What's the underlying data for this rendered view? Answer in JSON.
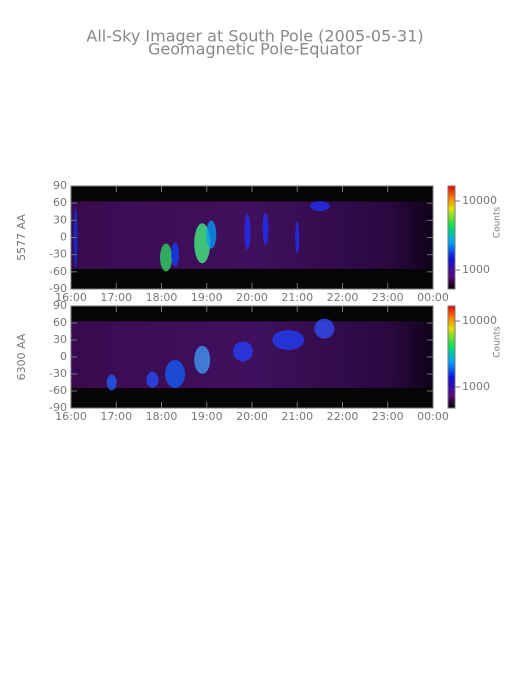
{
  "chart_data": [
    {
      "type": "heatmap",
      "title": "All-Sky Imager at South Pole (2005-05-31)",
      "subtitle": "Geomagnetic Pole-Equator",
      "y_label": "5577 AA",
      "colorbar_label": "Counts",
      "xlim": [
        16,
        24
      ],
      "xticks": [
        {
          "value": 16,
          "label": "16:00"
        },
        {
          "value": 17,
          "label": "17:00"
        },
        {
          "value": 18,
          "label": "18:00"
        },
        {
          "value": 19,
          "label": "19:00"
        },
        {
          "value": 20,
          "label": "20:00"
        },
        {
          "value": 21,
          "label": "21:00"
        },
        {
          "value": 22,
          "label": "22:00"
        },
        {
          "value": 23,
          "label": "23:00"
        },
        {
          "value": 24,
          "label": "00:00"
        }
      ],
      "ylim": [
        -90,
        90
      ],
      "yticks": [
        90,
        60,
        30,
        0,
        -30,
        -60,
        -90
      ],
      "clim": [
        530,
        16500
      ],
      "cticks": [
        1000,
        10000
      ],
      "color_log": true
    },
    {
      "type": "heatmap",
      "y_label": "6300 AA",
      "colorbar_label": "Counts",
      "xlim": [
        16,
        24
      ],
      "xticks": [
        {
          "value": 16,
          "label": "16:00"
        },
        {
          "value": 17,
          "label": "17:00"
        },
        {
          "value": 18,
          "label": "18:00"
        },
        {
          "value": 19,
          "label": "19:00"
        },
        {
          "value": 20,
          "label": "20:00"
        },
        {
          "value": 21,
          "label": "21:00"
        },
        {
          "value": 22,
          "label": "22:00"
        },
        {
          "value": 23,
          "label": "23:00"
        },
        {
          "value": 24,
          "label": "00:00"
        }
      ],
      "ylim": [
        -90,
        90
      ],
      "yticks": [
        90,
        60,
        30,
        0,
        -30,
        -60,
        -90
      ],
      "clim": [
        480,
        16900
      ],
      "cticks": [
        1000,
        10000
      ],
      "color_log": true
    }
  ]
}
